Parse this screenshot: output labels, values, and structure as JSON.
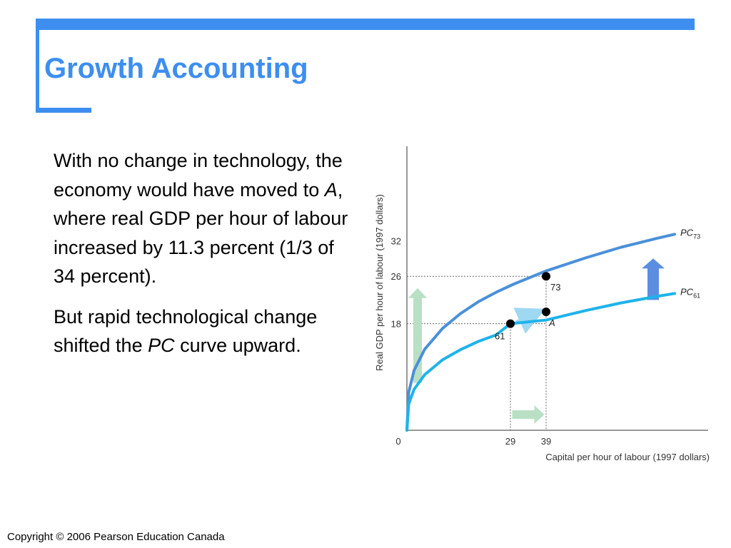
{
  "slide": {
    "title": "Growth Accounting",
    "para1": {
      "before": "With no change in technology, the economy would have moved to ",
      "em": "A",
      "after": ", where real GDP per hour of labour increased by 11.3 percent (1/3 of 34 percent)."
    },
    "para2": {
      "before": "But rapid technological change shifted the ",
      "em": "PC",
      "after": " curve upward."
    },
    "copyright": "Copyright © 2006 Pearson Education Canada"
  },
  "colors": {
    "accent": "#3d8ef0",
    "pc73": "#4a90d9",
    "pc61": "#1fb3ea",
    "arrow_green": "#b9e0c4"
  },
  "chart_data": {
    "type": "line",
    "xlabel": "Capital per hour of labour (1997 dollars)",
    "ylabel": "Real GDP per hour of labour (1997 dollars)",
    "xlim": [
      0,
      83
    ],
    "ylim": [
      0,
      40
    ],
    "origin_label": "0",
    "x_ticks": [
      29,
      39
    ],
    "y_ticks": [
      18,
      26,
      32
    ],
    "series": [
      {
        "name": "PC",
        "subscript": "73",
        "x": [
          0,
          0.5,
          2,
          5,
          10,
          15,
          20,
          25,
          30,
          39,
          50,
          60,
          70,
          75
        ],
        "y": [
          0,
          6.4,
          10.1,
          13.7,
          17.2,
          19.7,
          21.7,
          23.3,
          24.7,
          26.9,
          29.1,
          30.9,
          32.4,
          33.1
        ]
      },
      {
        "name": "PC",
        "subscript": "61",
        "x": [
          0,
          0.5,
          2,
          5,
          10,
          15,
          20,
          25,
          29,
          39,
          50,
          60,
          70,
          75
        ],
        "y": [
          0,
          4.4,
          6.9,
          9.4,
          11.9,
          13.6,
          15.0,
          16.1,
          18.0,
          18.6,
          20.2,
          21.5,
          22.6,
          23.1
        ]
      }
    ],
    "points": [
      {
        "label": "61",
        "x": 29,
        "y": 18
      },
      {
        "label": "A",
        "x": 39,
        "y": 20
      },
      {
        "label": "73",
        "x": 39,
        "y": 26
      }
    ]
  }
}
